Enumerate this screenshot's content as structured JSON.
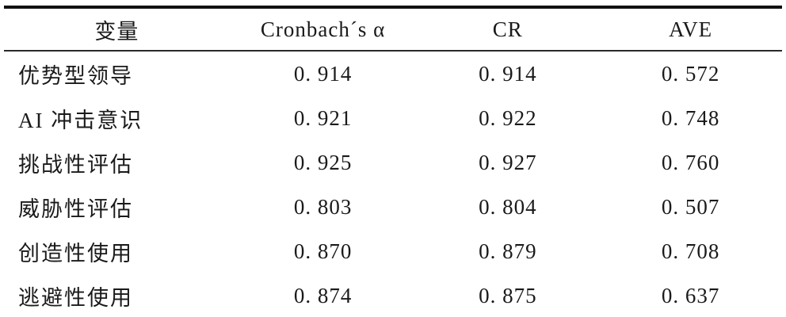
{
  "colors": {
    "background": "#ffffff",
    "text": "#1a1a1a",
    "rule": "#111111"
  },
  "table": {
    "columns": [
      {
        "key": "variable",
        "label": "变量"
      },
      {
        "key": "cronbach",
        "label": "Cronbach´s α"
      },
      {
        "key": "cr",
        "label": "CR"
      },
      {
        "key": "ave",
        "label": "AVE"
      }
    ],
    "rows": [
      {
        "variable": "优势型领导",
        "cronbach": "0. 914",
        "cr": "0. 914",
        "ave": "0. 572"
      },
      {
        "variable": "AI 冲击意识",
        "cronbach": "0. 921",
        "cr": "0. 922",
        "ave": "0. 748"
      },
      {
        "variable": "挑战性评估",
        "cronbach": "0. 925",
        "cr": "0. 927",
        "ave": "0. 760"
      },
      {
        "variable": "威胁性评估",
        "cronbach": "0. 803",
        "cr": "0. 804",
        "ave": "0. 507"
      },
      {
        "variable": "创造性使用",
        "cronbach": "0. 870",
        "cr": "0. 879",
        "ave": "0. 708"
      },
      {
        "variable": "逃避性使用",
        "cronbach": "0. 874",
        "cr": "0. 875",
        "ave": "0. 637"
      }
    ]
  },
  "chart_data": {
    "type": "table",
    "title": "",
    "columns": [
      "变量",
      "Cronbach´s α",
      "CR",
      "AVE"
    ],
    "categories": [
      "优势型领导",
      "AI 冲击意识",
      "挑战性评估",
      "威胁性评估",
      "创造性使用",
      "逃避性使用"
    ],
    "series": [
      {
        "name": "Cronbach´s α",
        "values": [
          0.914,
          0.921,
          0.925,
          0.803,
          0.87,
          0.874
        ]
      },
      {
        "name": "CR",
        "values": [
          0.914,
          0.922,
          0.927,
          0.804,
          0.879,
          0.875
        ]
      },
      {
        "name": "AVE",
        "values": [
          0.572,
          0.748,
          0.76,
          0.507,
          0.708,
          0.637
        ]
      }
    ]
  }
}
